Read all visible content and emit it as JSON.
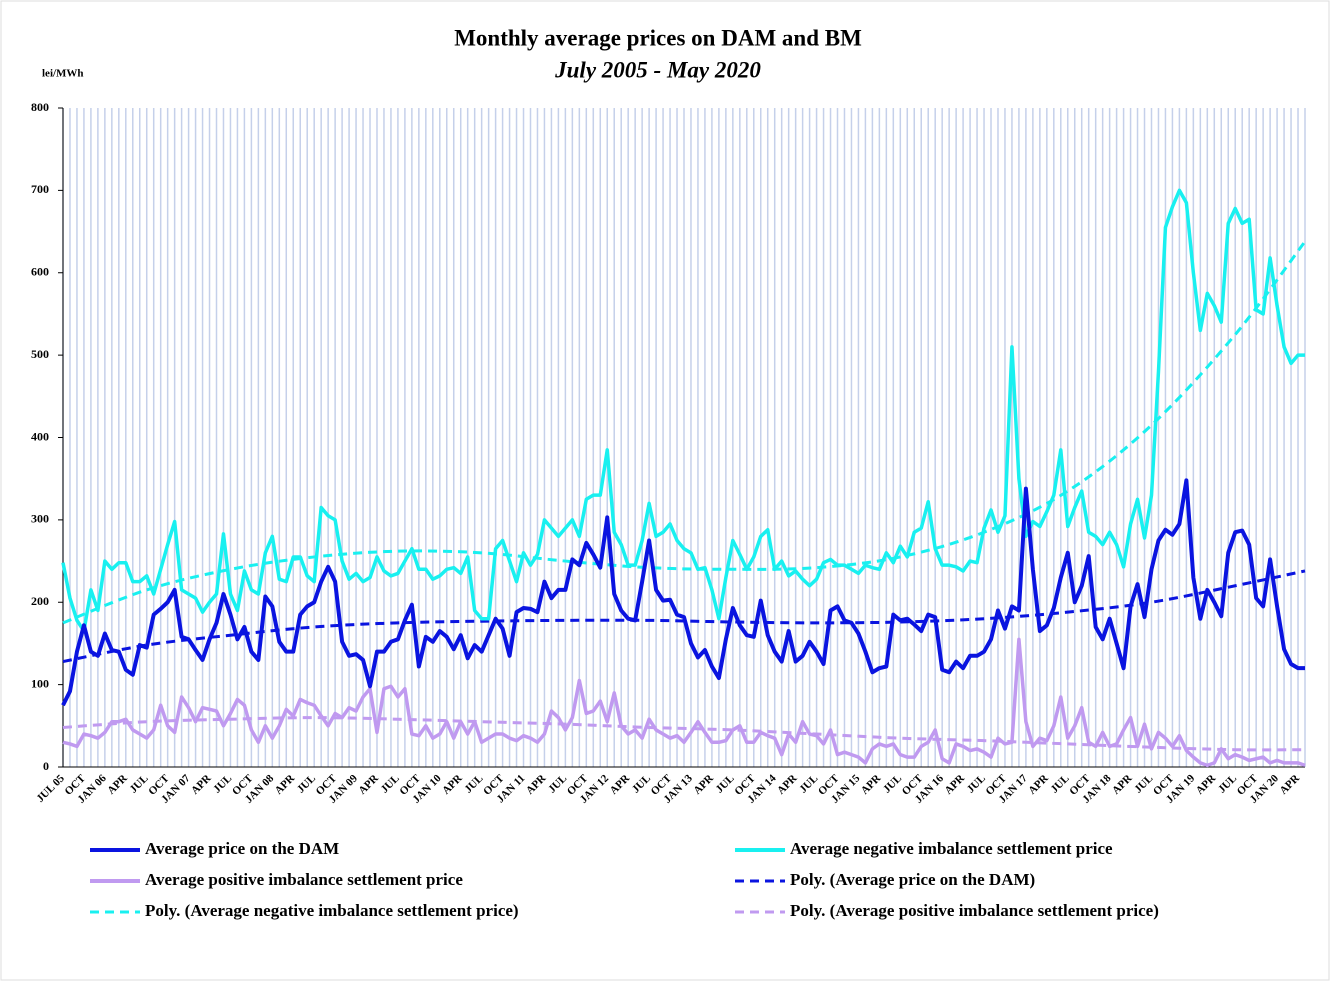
{
  "chart_data": {
    "type": "line",
    "title": "Monthly  average prices on DAM and BM",
    "subtitle": "July 2005 - May 2020",
    "y_label": "lei/MWh",
    "ylim": [
      0,
      800
    ],
    "yticks": [
      0,
      100,
      200,
      300,
      400,
      500,
      600,
      700,
      800
    ],
    "grid": "x",
    "legend": "bottom",
    "categories": [
      "JUL 05",
      null,
      null,
      "OCT",
      null,
      null,
      "JAN 06",
      null,
      null,
      "APR",
      null,
      null,
      "JUL",
      null,
      null,
      "OCT",
      null,
      null,
      "JAN 07",
      null,
      null,
      "APR",
      null,
      null,
      "JUL",
      null,
      null,
      "OCT",
      null,
      null,
      "JAN 08",
      null,
      null,
      "APR",
      null,
      null,
      "JUL",
      null,
      null,
      "OCT",
      null,
      null,
      "JAN 09",
      null,
      null,
      "APR",
      null,
      null,
      "JUL",
      null,
      null,
      "OCT",
      null,
      null,
      "JAN 10",
      null,
      null,
      "APR",
      null,
      null,
      "JUL",
      null,
      null,
      "OCT",
      null,
      null,
      "JAN 11",
      null,
      null,
      "APR",
      null,
      null,
      "JUL",
      null,
      null,
      "OCT",
      null,
      null,
      "JAN 12",
      null,
      null,
      "APR",
      null,
      null,
      "JUL",
      null,
      null,
      "OCT",
      null,
      null,
      "JAN 13",
      null,
      null,
      "APR",
      null,
      null,
      "JUL",
      null,
      null,
      "OCT",
      null,
      null,
      "JAN 14",
      null,
      null,
      "APR",
      null,
      null,
      "JUL",
      null,
      null,
      "OCT",
      null,
      null,
      "JAN 15",
      null,
      null,
      "APR",
      null,
      null,
      "JUL",
      null,
      null,
      "OCT",
      null,
      null,
      "JAN 16",
      null,
      null,
      "APR",
      null,
      null,
      "JUL",
      null,
      null,
      "OCT",
      null,
      null,
      "JAN 17",
      null,
      null,
      "APR",
      null,
      null,
      "JUL",
      null,
      null,
      "OCT",
      null,
      null,
      "JAN 18",
      null,
      null,
      "APR",
      null,
      null,
      "JUL",
      null,
      null,
      "OCT",
      null,
      null,
      "JAN 19",
      null,
      null,
      "APR",
      null,
      null,
      "JUL",
      null,
      null,
      "OCT",
      null,
      null,
      "JAN 20",
      null,
      null,
      "APR",
      null
    ],
    "series": [
      {
        "name": "Average price on the DAM",
        "color": "#0a14e0",
        "width": 4,
        "values": [
          75,
          92,
          140,
          172,
          140,
          135,
          162,
          142,
          140,
          118,
          112,
          148,
          145,
          185,
          192,
          200,
          215,
          158,
          155,
          142,
          130,
          155,
          175,
          210,
          185,
          155,
          170,
          140,
          130,
          207,
          195,
          152,
          140,
          140,
          185,
          195,
          200,
          225,
          243,
          225,
          152,
          135,
          137,
          130,
          98,
          140,
          140,
          152,
          155,
          178,
          197,
          122,
          158,
          152,
          165,
          158,
          143,
          160,
          132,
          148,
          140,
          160,
          180,
          168,
          135,
          188,
          193,
          192,
          188,
          225,
          205,
          215,
          215,
          252,
          245,
          272,
          258,
          242,
          303,
          210,
          190,
          180,
          178,
          225,
          275,
          215,
          202,
          203,
          185,
          182,
          150,
          133,
          142,
          122,
          108,
          155,
          193,
          172,
          160,
          158,
          202,
          160,
          140,
          128,
          165,
          128,
          135,
          152,
          140,
          125,
          190,
          195,
          178,
          175,
          162,
          140,
          115,
          120,
          122,
          185,
          178,
          180,
          173,
          165,
          185,
          182,
          118,
          115,
          128,
          120,
          135,
          135,
          140,
          155,
          190,
          168,
          195,
          190,
          338,
          240,
          165,
          172,
          193,
          230,
          260,
          200,
          220,
          256,
          170,
          155,
          180,
          150,
          120,
          195,
          222,
          182,
          240,
          275,
          288,
          282,
          295,
          348,
          230,
          180,
          215,
          200,
          183,
          260,
          285,
          287,
          270,
          205,
          195,
          252,
          195,
          143,
          125,
          120,
          120
        ]
      },
      {
        "name": "Average negative imbalance settlement price",
        "color": "#19f0f0",
        "width": 3.5,
        "values": [
          248,
          205,
          178,
          165,
          215,
          190,
          250,
          240,
          248,
          248,
          225,
          225,
          232,
          210,
          240,
          270,
          298,
          215,
          210,
          205,
          188,
          200,
          210,
          283,
          210,
          190,
          238,
          215,
          210,
          260,
          280,
          228,
          225,
          255,
          255,
          232,
          225,
          315,
          305,
          300,
          250,
          228,
          235,
          225,
          230,
          255,
          238,
          232,
          235,
          250,
          265,
          240,
          240,
          228,
          232,
          240,
          242,
          235,
          255,
          190,
          180,
          180,
          265,
          275,
          250,
          225,
          260,
          245,
          258,
          300,
          290,
          280,
          290,
          300,
          280,
          325,
          330,
          330,
          385,
          285,
          270,
          245,
          245,
          275,
          320,
          280,
          285,
          295,
          275,
          265,
          260,
          240,
          242,
          215,
          180,
          230,
          275,
          258,
          240,
          255,
          280,
          288,
          240,
          250,
          232,
          238,
          228,
          220,
          228,
          248,
          252,
          245,
          245,
          240,
          235,
          245,
          242,
          240,
          260,
          248,
          268,
          255,
          285,
          290,
          322,
          265,
          245,
          245,
          243,
          238,
          250,
          248,
          290,
          312,
          285,
          305,
          510,
          350,
          280,
          298,
          292,
          310,
          330,
          385,
          292,
          315,
          335,
          285,
          280,
          270,
          285,
          270,
          243,
          295,
          325,
          278,
          330,
          480,
          655,
          680,
          700,
          685,
          600,
          530,
          575,
          560,
          540,
          660,
          678,
          660,
          665,
          555,
          550,
          618,
          560,
          510,
          490,
          500,
          500
        ]
      },
      {
        "name": "Average positive imbalance settlement price",
        "color": "#c09af0",
        "width": 3.5,
        "values": [
          30,
          28,
          25,
          40,
          38,
          35,
          42,
          55,
          55,
          58,
          45,
          40,
          35,
          45,
          75,
          50,
          42,
          85,
          72,
          55,
          72,
          70,
          68,
          50,
          65,
          82,
          75,
          45,
          30,
          50,
          35,
          50,
          70,
          62,
          82,
          78,
          75,
          62,
          50,
          65,
          60,
          72,
          68,
          85,
          95,
          42,
          95,
          98,
          85,
          95,
          40,
          38,
          50,
          35,
          40,
          55,
          35,
          55,
          40,
          55,
          30,
          35,
          40,
          40,
          35,
          32,
          38,
          35,
          30,
          40,
          68,
          60,
          45,
          60,
          105,
          65,
          68,
          80,
          55,
          90,
          50,
          40,
          45,
          35,
          58,
          45,
          40,
          35,
          38,
          30,
          42,
          55,
          42,
          30,
          30,
          32,
          45,
          50,
          30,
          30,
          42,
          38,
          35,
          15,
          40,
          30,
          55,
          40,
          38,
          28,
          45,
          15,
          18,
          15,
          12,
          5,
          22,
          28,
          25,
          28,
          15,
          12,
          12,
          25,
          30,
          45,
          10,
          5,
          28,
          25,
          20,
          22,
          18,
          12,
          35,
          28,
          30,
          155,
          55,
          25,
          35,
          32,
          50,
          85,
          35,
          50,
          72,
          30,
          25,
          42,
          25,
          28,
          45,
          60,
          25,
          52,
          22,
          42,
          35,
          25,
          38,
          20,
          12,
          5,
          2,
          5,
          22,
          10,
          15,
          12,
          8,
          10,
          12,
          5,
          8,
          5,
          5,
          5,
          2
        ]
      }
    ],
    "trendlines": [
      {
        "name": "Poly. (Average price on the DAM)",
        "color": "#0a14e0",
        "dash": true,
        "x": [
          0,
          12,
          24,
          36,
          48,
          60,
          72,
          84,
          96,
          108,
          120,
          132,
          144,
          156,
          168,
          178
        ],
        "values": [
          128,
          148,
          160,
          170,
          175,
          177,
          178,
          178,
          176,
          175,
          176,
          180,
          188,
          200,
          220,
          238
        ]
      },
      {
        "name": "Poly. (Average negative imbalance settlement price)",
        "color": "#19f0f0",
        "dash": true,
        "x": [
          0,
          12,
          24,
          36,
          48,
          60,
          72,
          84,
          96,
          108,
          120,
          132,
          144,
          156,
          168,
          178
        ],
        "values": [
          175,
          215,
          240,
          255,
          262,
          260,
          250,
          242,
          240,
          242,
          255,
          285,
          335,
          415,
          525,
          638
        ]
      },
      {
        "name": "Poly. (Average positive imbalance settlement price)",
        "color": "#c09af0",
        "dash": true,
        "x": [
          0,
          12,
          24,
          36,
          48,
          60,
          72,
          84,
          96,
          108,
          120,
          132,
          144,
          156,
          168,
          178
        ],
        "values": [
          48,
          55,
          58,
          60,
          58,
          55,
          52,
          48,
          45,
          40,
          35,
          32,
          28,
          24,
          21,
          21
        ]
      }
    ]
  }
}
